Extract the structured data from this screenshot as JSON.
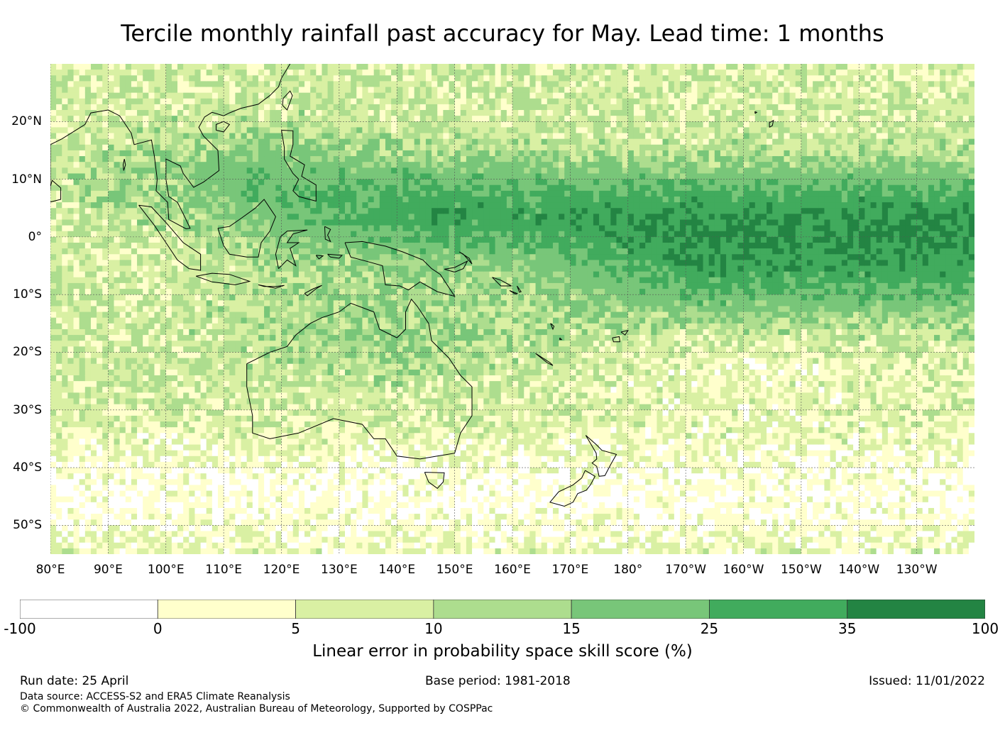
{
  "title": "Tercile monthly rainfall past accuracy for May. Lead time: 1 months",
  "map": {
    "lon_range": [
      80,
      240
    ],
    "lat_range": [
      -55,
      30
    ],
    "lon_labels": [
      {
        "lon": 80,
        "text": "80°E"
      },
      {
        "lon": 90,
        "text": "90°E"
      },
      {
        "lon": 100,
        "text": "100°E"
      },
      {
        "lon": 110,
        "text": "110°E"
      },
      {
        "lon": 120,
        "text": "120°E"
      },
      {
        "lon": 130,
        "text": "130°E"
      },
      {
        "lon": 140,
        "text": "140°E"
      },
      {
        "lon": 150,
        "text": "150°E"
      },
      {
        "lon": 160,
        "text": "160°E"
      },
      {
        "lon": 170,
        "text": "170°E"
      },
      {
        "lon": 180,
        "text": "180°"
      },
      {
        "lon": 190,
        "text": "170°W"
      },
      {
        "lon": 200,
        "text": "160°W"
      },
      {
        "lon": 210,
        "text": "150°W"
      },
      {
        "lon": 220,
        "text": "140°W"
      },
      {
        "lon": 230,
        "text": "130°W"
      }
    ],
    "lat_labels": [
      {
        "lat": 20,
        "text": "20°N"
      },
      {
        "lat": 10,
        "text": "10°N"
      },
      {
        "lat": 0,
        "text": "0°"
      },
      {
        "lat": -10,
        "text": "10°S"
      },
      {
        "lat": -20,
        "text": "20°S"
      },
      {
        "lat": -30,
        "text": "30°S"
      },
      {
        "lat": -40,
        "text": "40°S"
      },
      {
        "lat": -50,
        "text": "50°S"
      }
    ],
    "gridlines": true
  },
  "colorbar": {
    "bounds": [
      "-100",
      "0",
      "5",
      "10",
      "15",
      "25",
      "35",
      "100"
    ],
    "colors": [
      "#ffffff",
      "#ffffcc",
      "#d9f0a3",
      "#addd8e",
      "#78c679",
      "#41ab5d",
      "#238443"
    ],
    "label": "Linear error in probability space skill score (%)"
  },
  "footer": {
    "run_date": "Run date: 25 April",
    "data_source": "Data source: ACCESS-S2 and ERA5 Climate Reanalysis",
    "copyright": "© Commonwealth of Australia 2022, Australian Bureau of Meteorology, Supported by COSPPac",
    "base_period": "Base period: 1981-2018",
    "issued": "Issued: 11/01/2022"
  }
}
